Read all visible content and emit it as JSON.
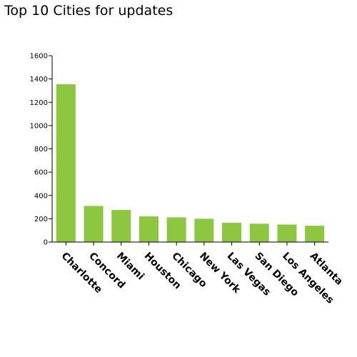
{
  "chart_data": {
    "type": "bar",
    "title": "Top 10 Cities for updates",
    "xlabel": "",
    "ylabel": "",
    "categories": [
      "Charlotte",
      "Concord",
      "Miami",
      "Houston",
      "Chicago",
      "New York",
      "Las Vegas",
      "San Diego",
      "Los Angeles",
      "Atlanta"
    ],
    "values": [
      1355,
      310,
      275,
      220,
      212,
      200,
      165,
      157,
      150,
      140
    ],
    "ylim": [
      0,
      1600
    ],
    "yticks": [
      "0",
      "200",
      "400",
      "600",
      "800",
      "1000",
      "1200",
      "1400",
      "1600"
    ],
    "grid": false,
    "legend": "none",
    "bar_color": "#8dc63f"
  }
}
